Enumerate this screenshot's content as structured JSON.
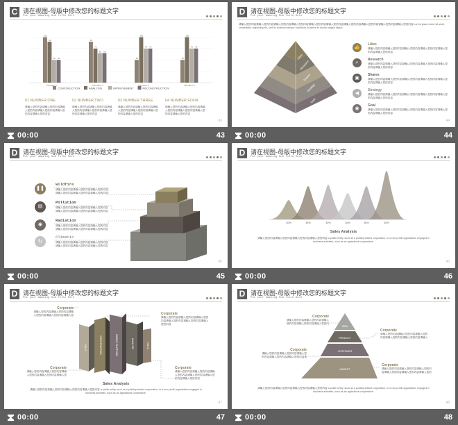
{
  "header": {
    "title": "请在视图-母版中修改您的标题文字",
    "subtitle": "Put your amazing Sub Title Here"
  },
  "time_label": "00:00",
  "colors": {
    "brown": "#7e7a68",
    "taupe": "#8f8272",
    "gray": "#9a9a9a",
    "dark": "#6e6e6e",
    "dots": [
      "#8e8a72",
      "#7a7a7a",
      "#a89b80",
      "#6f6f6f",
      "#b3a98e"
    ]
  },
  "slides": [
    {
      "letter": "C",
      "number": "43",
      "chart_data": {
        "type": "bar",
        "categories": [
          "PROJECT 1",
          "PROJECT 2",
          "PROJECT 3",
          "PROJECT 4"
        ],
        "series": [
          {
            "name": "CONSTRUCTION",
            "values": [
              100,
              90,
              50,
              50
            ]
          },
          {
            "name": "ANALYSIS",
            "values": [
              90,
              75,
              100,
              100
            ]
          },
          {
            "name": "IMPROVEMENT",
            "values": [
              50,
              65,
              75,
              75
            ]
          },
          {
            "name": "RECONSTRUCTION",
            "values": [
              50,
              65,
              75,
              75
            ]
          }
        ],
        "ylim": [
          0,
          110
        ]
      },
      "columns": [
        {
          "heading": "01 NUMBER ONE"
        },
        {
          "heading": "02 NUMBER TWO"
        },
        {
          "heading": "03 NUMBER THREE"
        },
        {
          "heading": "04 NUMBER FOUR"
        }
      ]
    },
    {
      "letter": "D",
      "number": "44",
      "intro": "请输入您的内容请输入您的内容请输入您的内容请输入您的内容请输入您的内容请输入您的内容请输入您的内容请输入您的内容请输入您的内容请输入您的内容 Lorem ipsum dolor sit amet, consectetur adipiscing elit, sed do eiusmod tempor incididunt ut labore et dolore magna aliqua.",
      "pyramid_labels": [
        "Likes",
        "Research",
        "Shares",
        "Strategy",
        "Goal"
      ],
      "items": [
        {
          "title": "Likes",
          "icon": "thumbs-up-icon"
        },
        {
          "title": "Research",
          "icon": "search-icon"
        },
        {
          "title": "Shares",
          "icon": "share-icon"
        },
        {
          "title": "Strategy",
          "icon": "megaphone-icon"
        },
        {
          "title": "Goal",
          "icon": "camera-icon"
        }
      ]
    },
    {
      "letter": "D",
      "number": "45",
      "items": [
        {
          "title": "Wildfire",
          "icon": "pause-icon"
        },
        {
          "title": "Pollution",
          "icon": "calendar-icon"
        },
        {
          "title": "Radiation",
          "icon": "eye-icon"
        },
        {
          "title": "Climatic",
          "icon": "cycle-icon"
        }
      ]
    },
    {
      "letter": "D",
      "number": "46",
      "chart_data": {
        "type": "area",
        "categories": [
          "A",
          "B",
          "C",
          "D",
          "E",
          "F"
        ],
        "values": [
          20,
          30,
          30,
          30,
          30,
          30
        ],
        "value_labels": [
          "20%",
          "30%",
          "30%",
          "30%",
          "30%",
          "30%"
        ],
        "title": "Sales Analysis"
      },
      "caption": "请输入您的内容请输入您的内容请输入您的内容请输入您的内容 a public entity, such as a publicly-traded corporation, or a non-profit organization engaged in business activities, such as an agricultural cooperative."
    },
    {
      "letter": "D",
      "number": "47",
      "corporate_label": "Corporate",
      "blocks": [
        "NO.01",
        "CONSTRUCTION",
        "MOBILE PLATFORM",
        "ANALYSIS",
        "NO.02"
      ],
      "chart_title": "Sales Analysis",
      "caption": "请输入您的内容请输入您的内容请输入您的内容请输入您的内容 a public entity, such as a publicly-traded corporation, or a non-profit organization engaged in business activities, such as an agricultural cooperative."
    },
    {
      "letter": "D",
      "number": "48",
      "corporate_label": "Corporate",
      "layers": [
        "IDEA",
        "PRODUCT",
        "COSTUMER",
        "MARKET"
      ],
      "caption": "请输入您的内容请输入您的内容请输入您的内容请输入您的内容 a public entity, such as a publicly-traded corporation, or a non-profit organization engaged in business activities, such as an agricultural cooperative."
    }
  ],
  "placeholder_text": "请输入您的内容请输入您的内容请输入您的内容请输入您的内容请输入您的内容请输入您的内容"
}
